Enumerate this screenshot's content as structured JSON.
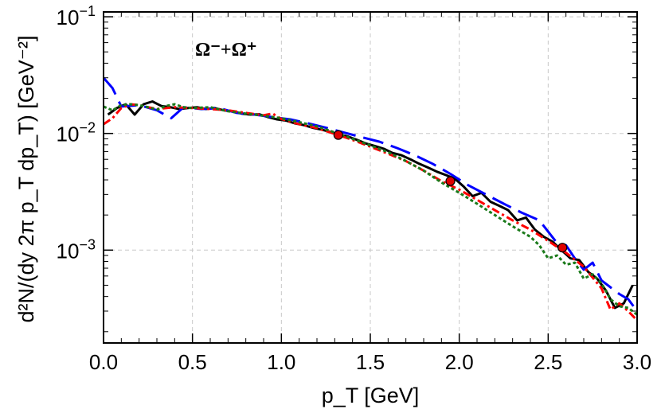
{
  "chart_data": {
    "type": "line",
    "title": "",
    "xlabel": "p_T [GeV]",
    "ylabel": "d²N/(dy 2π p_T dp_T) [GeV⁻²]",
    "annotation": "Ω⁻+Ω⁺",
    "xlim": [
      0,
      3
    ],
    "ylim": [
      0.00016,
      0.11
    ],
    "yscale": "log",
    "grid": true,
    "x_ticks": [
      "0.0",
      "0.5",
      "1.0",
      "1.5",
      "2.0",
      "2.5",
      "3.0"
    ],
    "y_ticks": [
      {
        "value": 0.1,
        "mantissa": "10",
        "exponent": "−1"
      },
      {
        "value": 0.01,
        "mantissa": "10",
        "exponent": "−2"
      },
      {
        "value": 0.001,
        "mantissa": "10",
        "exponent": "−3"
      }
    ],
    "series": [
      {
        "style": "solid",
        "color": "#000000",
        "x": [
          0.025,
          0.075,
          0.125,
          0.175,
          0.225,
          0.275,
          0.325,
          0.375,
          0.425,
          0.475,
          0.525,
          0.575,
          0.625,
          0.675,
          0.725,
          0.775,
          0.825,
          0.875,
          0.925,
          0.975,
          1.025,
          1.075,
          1.125,
          1.175,
          1.225,
          1.275,
          1.325,
          1.375,
          1.425,
          1.475,
          1.525,
          1.575,
          1.625,
          1.675,
          1.725,
          1.775,
          1.825,
          1.875,
          1.925,
          1.975,
          2.025,
          2.075,
          2.125,
          2.175,
          2.225,
          2.275,
          2.325,
          2.375,
          2.425,
          2.475,
          2.525,
          2.575,
          2.625,
          2.675,
          2.725,
          2.775,
          2.825,
          2.875,
          2.925,
          2.975
        ],
        "y": [
          0.0145,
          0.0165,
          0.0178,
          0.0145,
          0.0178,
          0.0188,
          0.0172,
          0.0168,
          0.0162,
          0.0165,
          0.0168,
          0.0162,
          0.0165,
          0.0158,
          0.0155,
          0.0148,
          0.0145,
          0.0146,
          0.0138,
          0.0132,
          0.0129,
          0.0122,
          0.0118,
          0.0112,
          0.0108,
          0.0103,
          0.0098,
          0.0094,
          0.0088,
          0.0082,
          0.0078,
          0.0074,
          0.0068,
          0.0065,
          0.006,
          0.0055,
          0.0051,
          0.0047,
          0.0044,
          0.0041,
          0.0035,
          0.0029,
          0.0031,
          0.0026,
          0.0024,
          0.0022,
          0.0018,
          0.0019,
          0.0015,
          0.0013,
          0.00118,
          0.001,
          0.00085,
          0.00082,
          0.00065,
          0.00057,
          0.00045,
          0.00032,
          0.00035,
          0.0005
        ]
      },
      {
        "style": "dashed",
        "color": "#0000ff",
        "x": [
          0.0,
          0.05,
          0.1,
          0.2,
          0.3,
          0.38,
          0.45,
          0.55,
          0.65,
          0.75,
          0.85,
          0.95,
          1.05,
          1.15,
          1.25,
          1.35,
          1.45,
          1.55,
          1.65,
          1.75,
          1.85,
          1.95,
          2.05,
          2.15,
          2.25,
          2.35,
          2.45,
          2.55,
          2.6,
          2.65,
          2.7,
          2.75,
          2.8,
          2.85,
          2.9,
          2.95,
          3.0
        ],
        "y": [
          0.03,
          0.0245,
          0.017,
          0.0175,
          0.0158,
          0.0135,
          0.0168,
          0.0162,
          0.0165,
          0.015,
          0.0145,
          0.0138,
          0.0132,
          0.0122,
          0.0112,
          0.0102,
          0.0093,
          0.0085,
          0.0075,
          0.0065,
          0.0055,
          0.0045,
          0.0036,
          0.003,
          0.0025,
          0.0021,
          0.0018,
          0.00115,
          0.0011,
          0.00085,
          0.00068,
          0.00078,
          0.00055,
          0.00048,
          0.00042,
          0.00038,
          0.0003
        ]
      },
      {
        "style": "dashdot",
        "color": "#ff0000",
        "x": [
          0.0,
          0.05,
          0.1,
          0.15,
          0.2,
          0.25,
          0.3,
          0.4,
          0.5,
          0.6,
          0.7,
          0.8,
          0.9,
          0.95,
          1.0,
          1.1,
          1.2,
          1.3,
          1.4,
          1.5,
          1.6,
          1.7,
          1.8,
          1.9,
          2.0,
          2.1,
          2.2,
          2.3,
          2.4,
          2.5,
          2.6,
          2.7,
          2.8,
          2.85,
          2.9,
          2.95,
          3.0
        ],
        "y": [
          0.012,
          0.0135,
          0.0165,
          0.0178,
          0.0175,
          0.0168,
          0.0162,
          0.0168,
          0.0165,
          0.0162,
          0.0158,
          0.015,
          0.0143,
          0.0148,
          0.0133,
          0.012,
          0.0111,
          0.0099,
          0.0088,
          0.0077,
          0.0067,
          0.0058,
          0.0048,
          0.0039,
          0.0033,
          0.0027,
          0.0022,
          0.0018,
          0.0015,
          0.0012,
          0.00095,
          0.00072,
          0.00047,
          0.00031,
          0.00035,
          0.0003,
          0.00025
        ]
      },
      {
        "style": "dotted",
        "color": "#1a7a1a",
        "x": [
          0.0,
          0.05,
          0.1,
          0.15,
          0.2,
          0.25,
          0.3,
          0.35,
          0.4,
          0.45,
          0.5,
          0.6,
          0.7,
          0.8,
          0.9,
          1.0,
          1.1,
          1.2,
          1.3,
          1.4,
          1.5,
          1.6,
          1.7,
          1.8,
          1.9,
          2.0,
          2.1,
          2.2,
          2.3,
          2.4,
          2.45,
          2.5,
          2.55,
          2.6,
          2.65,
          2.7,
          2.75,
          2.8,
          2.85,
          2.9,
          2.95,
          3.0
        ],
        "y": [
          0.017,
          0.0158,
          0.0175,
          0.0178,
          0.0175,
          0.0168,
          0.016,
          0.0172,
          0.0178,
          0.0168,
          0.0165,
          0.0168,
          0.0155,
          0.0148,
          0.0142,
          0.0135,
          0.0125,
          0.0115,
          0.0102,
          0.009,
          0.0079,
          0.0069,
          0.0058,
          0.0048,
          0.0038,
          0.0031,
          0.0025,
          0.002,
          0.0016,
          0.0013,
          0.0011,
          0.00085,
          0.0009,
          0.00075,
          0.00078,
          0.00057,
          0.00062,
          0.00052,
          0.00038,
          0.00033,
          0.00032,
          0.00028
        ]
      }
    ],
    "markers": {
      "color": "#e00000",
      "x": [
        1.32,
        1.95,
        2.58
      ],
      "y": [
        0.0097,
        0.0039,
        0.00105
      ],
      "yerr": [
        0.0008,
        0.00025,
        6e-05
      ]
    }
  }
}
